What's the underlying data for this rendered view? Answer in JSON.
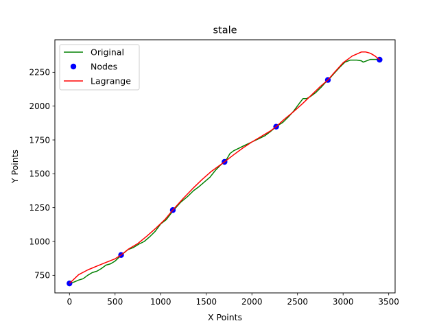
{
  "chart_data": {
    "type": "line",
    "title": "stale",
    "xlabel": "X Points",
    "ylabel": "Y Points",
    "xlim": [
      -160,
      3570
    ],
    "ylim": [
      620,
      2490
    ],
    "xticks": [
      0,
      500,
      1000,
      1500,
      2000,
      2500,
      3000,
      3500
    ],
    "yticks": [
      750,
      1000,
      1250,
      1500,
      1750,
      2000,
      2250
    ],
    "legend_position": "top-left",
    "grid": false,
    "series": [
      {
        "name": "Original",
        "kind": "line",
        "color": "#008000",
        "x": [
          0,
          50,
          100,
          150,
          200,
          250,
          300,
          350,
          400,
          450,
          500,
          570,
          640,
          700,
          760,
          820,
          880,
          940,
          1000,
          1060,
          1140,
          1220,
          1300,
          1360,
          1420,
          1480,
          1540,
          1600,
          1650,
          1700,
          1730,
          1760,
          1800,
          1860,
          1920,
          2000,
          2080,
          2140,
          2200,
          2270,
          2340,
          2400,
          2460,
          2520,
          2560,
          2600,
          2640,
          2700,
          2760,
          2800,
          2840,
          2900,
          2960,
          3020,
          3080,
          3150,
          3200,
          3220,
          3300,
          3400
        ],
        "y": [
          690,
          700,
          715,
          725,
          750,
          770,
          780,
          800,
          825,
          835,
          855,
          900,
          940,
          955,
          980,
          1000,
          1035,
          1075,
          1130,
          1160,
          1230,
          1290,
          1335,
          1375,
          1405,
          1440,
          1475,
          1525,
          1560,
          1590,
          1615,
          1650,
          1670,
          1690,
          1710,
          1735,
          1760,
          1780,
          1810,
          1850,
          1880,
          1920,
          1965,
          2020,
          2055,
          2055,
          2070,
          2100,
          2140,
          2170,
          2195,
          2240,
          2285,
          2325,
          2340,
          2340,
          2335,
          2325,
          2345,
          2345
        ]
      },
      {
        "name": "Nodes",
        "kind": "scatter",
        "color": "#0000ff",
        "x": [
          0,
          566,
          1133,
          1700,
          2266,
          2833,
          3400
        ],
        "y": [
          690,
          900,
          1232,
          1588,
          1848,
          2193,
          2343
        ]
      },
      {
        "name": "Lagrange",
        "kind": "line",
        "color": "#ff0000",
        "x": [
          0,
          100,
          200,
          300,
          400,
          500,
          566,
          650,
          750,
          850,
          950,
          1050,
          1133,
          1250,
          1350,
          1450,
          1550,
          1700,
          1800,
          1900,
          2000,
          2100,
          2200,
          2266,
          2350,
          2450,
          2550,
          2650,
          2750,
          2833,
          2900,
          3000,
          3100,
          3200,
          3250,
          3300,
          3350,
          3400
        ],
        "y": [
          690,
          755,
          790,
          818,
          845,
          872,
          900,
          945,
          985,
          1040,
          1100,
          1165,
          1232,
          1320,
          1390,
          1455,
          1515,
          1588,
          1640,
          1690,
          1735,
          1775,
          1815,
          1848,
          1900,
          1955,
          2015,
          2080,
          2145,
          2193,
          2245,
          2320,
          2370,
          2400,
          2400,
          2390,
          2370,
          2343
        ]
      }
    ]
  }
}
